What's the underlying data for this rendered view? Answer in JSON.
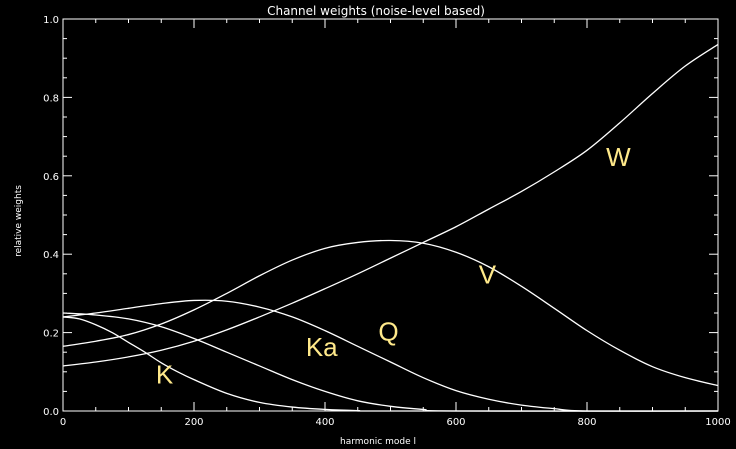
{
  "chart_data": {
    "type": "line",
    "title": "Channel weights (noise-level based)",
    "xlabel": "harmonic mode l",
    "ylabel": "relative weights",
    "xlim": [
      0,
      1000
    ],
    "ylim": [
      0.0,
      1.0
    ],
    "xticks": [
      "0",
      "200",
      "400",
      "600",
      "800",
      "1000"
    ],
    "yticks": [
      "0.0",
      "0.2",
      "0.4",
      "0.6",
      "0.8",
      "1.0"
    ],
    "grid": false,
    "colors": {
      "background": "#000000",
      "line": "#ffffff",
      "annotation": "#ffe98a"
    },
    "series": [
      {
        "name": "K",
        "x": [
          0,
          25,
          50,
          75,
          100,
          125,
          150,
          175,
          200,
          250,
          300,
          350,
          400,
          450,
          500
        ],
        "y": [
          0.24,
          0.235,
          0.22,
          0.2,
          0.175,
          0.15,
          0.123,
          0.1,
          0.08,
          0.045,
          0.022,
          0.01,
          0.004,
          0.001,
          0.0
        ]
      },
      {
        "name": "Ka",
        "x": [
          0,
          50,
          100,
          150,
          200,
          250,
          300,
          350,
          400,
          450,
          500,
          550,
          600
        ],
        "y": [
          0.25,
          0.245,
          0.235,
          0.215,
          0.185,
          0.15,
          0.115,
          0.08,
          0.05,
          0.026,
          0.012,
          0.004,
          0.0
        ]
      },
      {
        "name": "Q",
        "x": [
          0,
          50,
          100,
          150,
          200,
          250,
          300,
          350,
          400,
          450,
          500,
          550,
          600,
          650,
          700,
          750,
          800
        ],
        "y": [
          0.24,
          0.25,
          0.262,
          0.274,
          0.282,
          0.28,
          0.265,
          0.24,
          0.205,
          0.165,
          0.125,
          0.085,
          0.052,
          0.03,
          0.015,
          0.006,
          0.0
        ]
      },
      {
        "name": "V",
        "x": [
          0,
          50,
          100,
          150,
          200,
          250,
          300,
          350,
          400,
          450,
          500,
          550,
          600,
          650,
          700,
          750,
          800,
          850,
          900,
          950,
          1000
        ],
        "y": [
          0.165,
          0.178,
          0.195,
          0.222,
          0.258,
          0.3,
          0.345,
          0.385,
          0.415,
          0.43,
          0.435,
          0.428,
          0.405,
          0.368,
          0.318,
          0.262,
          0.205,
          0.155,
          0.113,
          0.085,
          0.065
        ]
      },
      {
        "name": "W",
        "x": [
          0,
          50,
          100,
          150,
          200,
          250,
          300,
          350,
          400,
          450,
          500,
          550,
          600,
          650,
          700,
          750,
          800,
          850,
          900,
          950,
          1000
        ],
        "y": [
          0.115,
          0.125,
          0.138,
          0.155,
          0.178,
          0.207,
          0.24,
          0.275,
          0.312,
          0.35,
          0.39,
          0.43,
          0.47,
          0.515,
          0.56,
          0.61,
          0.665,
          0.735,
          0.81,
          0.88,
          0.935
        ]
      }
    ],
    "annotations": [
      {
        "text": "K",
        "x": 155,
        "y": 0.07
      },
      {
        "text": "Ka",
        "x": 395,
        "y": 0.14
      },
      {
        "text": "Q",
        "x": 497,
        "y": 0.18
      },
      {
        "text": "V",
        "x": 648,
        "y": 0.325
      },
      {
        "text": "W",
        "x": 848,
        "y": 0.625
      }
    ]
  }
}
